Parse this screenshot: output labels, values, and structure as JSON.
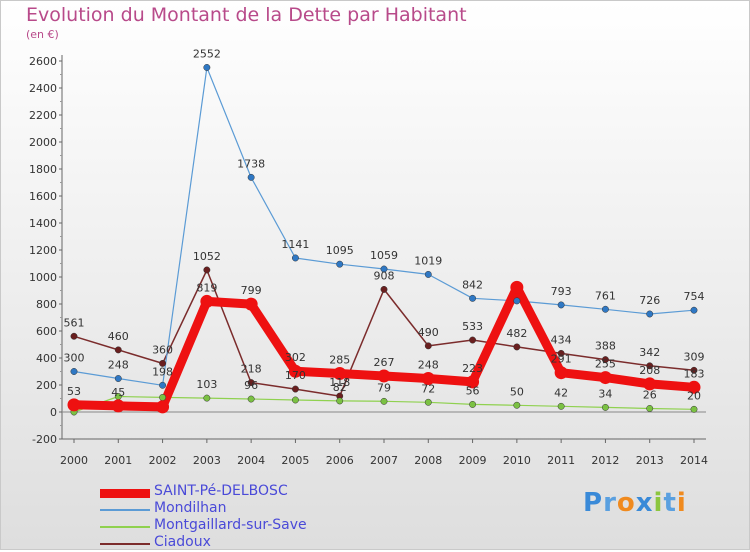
{
  "chart_data": {
    "type": "line",
    "title": "Evolution du Montant de la Dette par Habitant",
    "subtitle": "(en €)",
    "xlabel": "",
    "ylabel": "",
    "categories": [
      "2000",
      "2001",
      "2002",
      "2003",
      "2004",
      "2005",
      "2006",
      "2007",
      "2008",
      "2009",
      "2010",
      "2011",
      "2012",
      "2013",
      "2014"
    ],
    "ylim": [
      -200,
      2600
    ],
    "yticks": [
      -200,
      0,
      200,
      400,
      600,
      800,
      1000,
      1200,
      1400,
      1600,
      1800,
      2000,
      2200,
      2400,
      2600
    ],
    "grid": false,
    "legend_position": "bottom-left",
    "series": [
      {
        "name": "SAINT-Pé-DELBOSC",
        "color": "#ee1111",
        "values": [
          53,
          45,
          38,
          819,
          799,
          302,
          285,
          267,
          248,
          223,
          923,
          291,
          255,
          208,
          183
        ],
        "labels": [
          "53",
          "45",
          "",
          "819",
          "799",
          "302",
          "285",
          "267",
          "248",
          "223",
          "",
          "291",
          "255",
          "208",
          "183"
        ]
      },
      {
        "name": "Mondilhan",
        "color": "#5b9bd5",
        "values": [
          300,
          248,
          198,
          2552,
          1738,
          1141,
          1095,
          1059,
          1019,
          842,
          823,
          793,
          761,
          726,
          754
        ],
        "labels": [
          "300",
          "248",
          "198",
          "2552",
          "1738",
          "1141",
          "1095",
          "1059",
          "1019",
          "842",
          "",
          "793",
          "761",
          "726",
          "754"
        ]
      },
      {
        "name": "Montgaillard-sur-Save",
        "color": "#8fd14f",
        "values": [
          0,
          115,
          108,
          103,
          96,
          89,
          82,
          79,
          72,
          56,
          50,
          42,
          34,
          26,
          20
        ],
        "labels": [
          "",
          "",
          "",
          "103",
          "96",
          "",
          "82",
          "79",
          "72",
          "56",
          "50",
          "42",
          "34",
          "26",
          "20"
        ]
      },
      {
        "name": "Ciadoux",
        "color": "#7b2c2c",
        "values": [
          561,
          460,
          360,
          1052,
          218,
          170,
          118,
          908,
          490,
          533,
          482,
          434,
          388,
          342,
          309
        ],
        "labels": [
          "561",
          "460",
          "360",
          "1052",
          "218",
          "170",
          "118",
          "908",
          "490",
          "533",
          "482",
          "434",
          "388",
          "342",
          "309"
        ]
      }
    ]
  },
  "brand": {
    "letters": [
      "P",
      "r",
      "o",
      "x",
      "i",
      "t",
      "i"
    ],
    "colors": [
      "#3a8ad8",
      "#5aa0e0",
      "#f08a1e",
      "#3a8ad8",
      "#8cc63f",
      "#5aa0e0",
      "#f08a1e"
    ]
  }
}
